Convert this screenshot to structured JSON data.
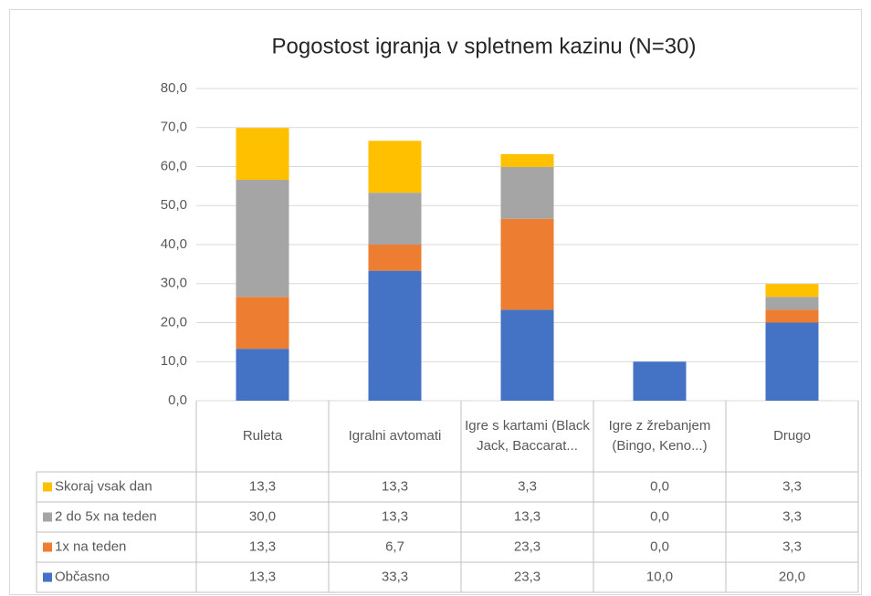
{
  "chart_data": {
    "type": "stacked_bar",
    "title": "Pogostost igranja v spletnem kazinu (N=30)",
    "categories": [
      "Ruleta",
      "Igralni avtomati",
      "Igre s kartami (Black Jack, Baccarat...",
      "Igre z žrebanjem (Bingo, Keno...)",
      "Drugo"
    ],
    "series": [
      {
        "name": "Občasno",
        "color": "#4472c4",
        "values": [
          13.3,
          33.3,
          23.3,
          10.0,
          20.0
        ],
        "value_labels": [
          "13,3",
          "33,3",
          "23,3",
          "10,0",
          "20,0"
        ]
      },
      {
        "name": "1x na teden",
        "color": "#ed7d31",
        "values": [
          13.3,
          6.7,
          23.3,
          0.0,
          3.3
        ],
        "value_labels": [
          "13,3",
          "6,7",
          "23,3",
          "0,0",
          "3,3"
        ]
      },
      {
        "name": "2 do 5x na teden",
        "color": "#a5a5a5",
        "values": [
          30.0,
          13.3,
          13.3,
          0.0,
          3.3
        ],
        "value_labels": [
          "30,0",
          "13,3",
          "13,3",
          "0,0",
          "3,3"
        ]
      },
      {
        "name": "Skoraj vsak dan",
        "color": "#ffc000",
        "values": [
          13.3,
          13.3,
          3.3,
          0.0,
          3.3
        ],
        "value_labels": [
          "13,3",
          "13,3",
          "3,3",
          "0,0",
          "3,3"
        ]
      }
    ],
    "ylim": [
      0,
      80
    ],
    "yticks": [
      {
        "value": 0,
        "label": "0,0"
      },
      {
        "value": 10,
        "label": "10,0"
      },
      {
        "value": 20,
        "label": "20,0"
      },
      {
        "value": 30,
        "label": "30,0"
      },
      {
        "value": 40,
        "label": "40,0"
      },
      {
        "value": 50,
        "label": "50,0"
      },
      {
        "value": 60,
        "label": "60,0"
      },
      {
        "value": 70,
        "label": "70,0"
      },
      {
        "value": 80,
        "label": "80,0"
      }
    ],
    "grid": true
  }
}
